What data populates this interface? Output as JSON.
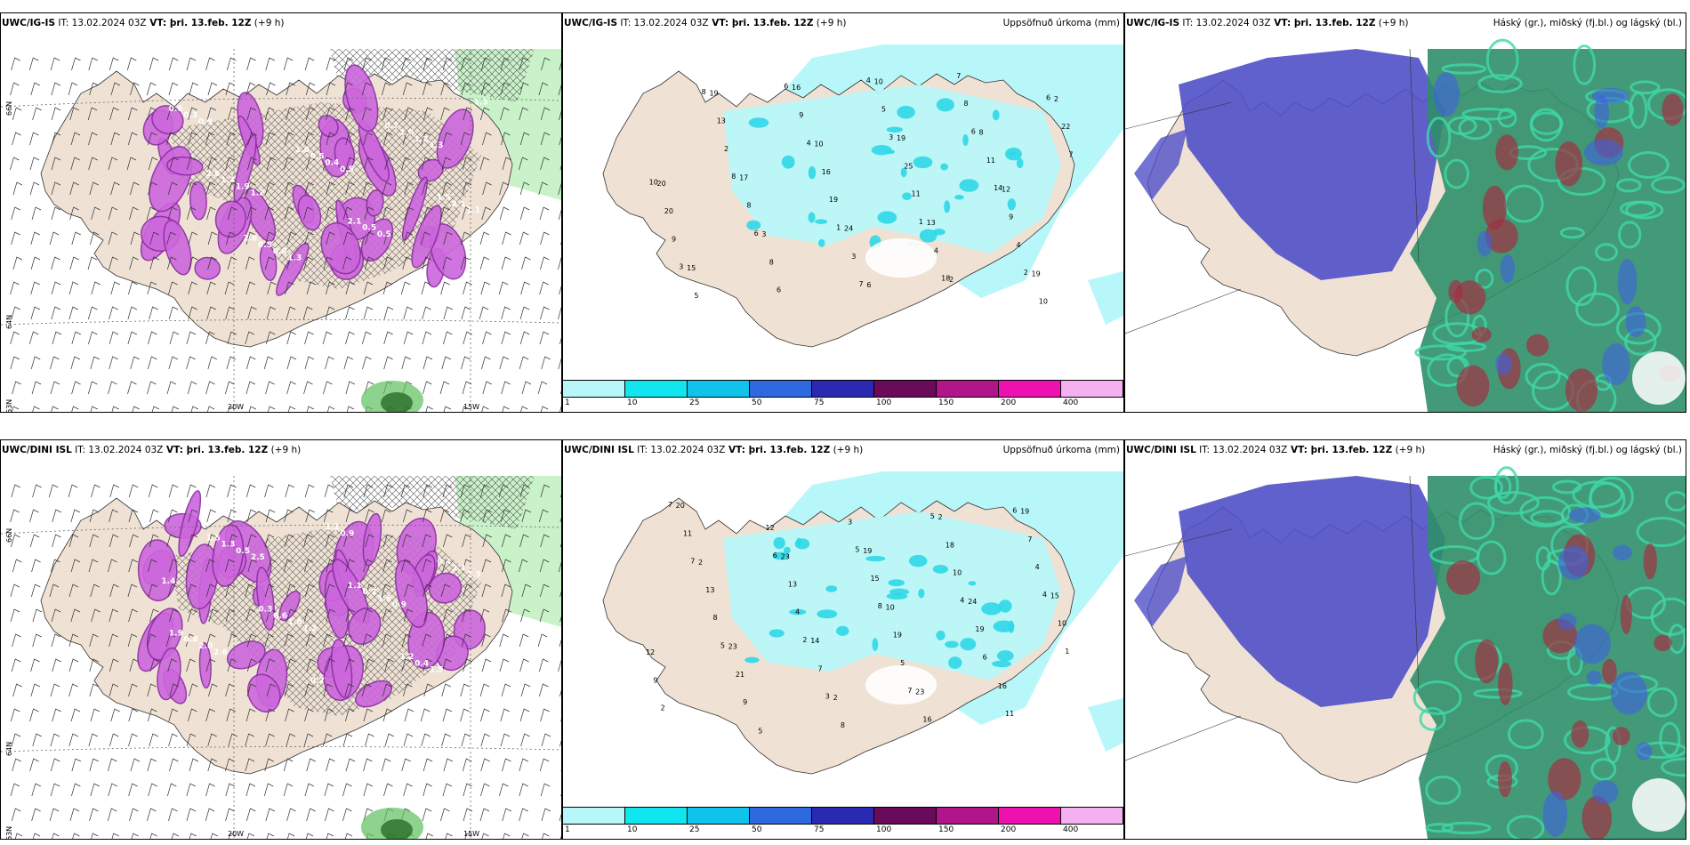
{
  "colors": {
    "land": "#efe2d4",
    "sea": "#ffffff",
    "precip_light": "#b8f7f9",
    "precip_mid": "#7fe7ef",
    "precip_cyan": "#2fd8e8",
    "snow_magenta": "#cc66dd",
    "snow_dark": "#8a2ca0",
    "high_cloud": "#2f8f6a",
    "mid_cloud": "#3fd8a8",
    "low_cloud": "#5050c8",
    "cloud_red": "#a03040",
    "cloud_blue": "#4060e0"
  },
  "colorbar": {
    "segments": [
      {
        "label": "1",
        "color": "#b8f7f9"
      },
      {
        "label": "10",
        "color": "#11e6f0"
      },
      {
        "label": "25",
        "color": "#10c3ea"
      },
      {
        "label": "50",
        "color": "#2d6ae0"
      },
      {
        "label": "75",
        "color": "#2a2ab0"
      },
      {
        "label": "100",
        "color": "#6a0a5a"
      },
      {
        "label": "150",
        "color": "#b0158a"
      },
      {
        "label": "200",
        "color": "#ee11b0"
      },
      {
        "label": "400",
        "color": "#f5b0f0"
      }
    ]
  },
  "panels": [
    {
      "model": "UWC/IG-IS",
      "it_label": "IT:",
      "it_value": "13.02.2024 03Z",
      "vt_label": "VT:",
      "vt_value": "þri. 13.feb. 12Z",
      "lead": "(+9 h)",
      "right_label": "",
      "lat_labels": [
        "66N",
        "64N",
        "63N"
      ],
      "lon_labels": [
        "20W",
        "15W"
      ],
      "snow_values": [
        "1.2",
        "0.5",
        "1.3",
        "0.9",
        "1.3",
        "0.5",
        "1.1",
        "1.9",
        "0.4",
        "1.2",
        "0.3",
        "0.8",
        "0.5",
        "2.1",
        "1.3",
        "0.5",
        "1.0",
        "0.6",
        "0.5",
        "2.1",
        "1.5",
        "2.6",
        "1.0",
        "0.7",
        "1.3",
        "2.8"
      ]
    },
    {
      "model": "UWC/IG-IS",
      "it_label": "IT:",
      "it_value": "13.02.2024 03Z",
      "vt_label": "VT:",
      "vt_value": "þri. 13.feb. 12Z",
      "lead": "(+9 h)",
      "right_label": "Uppsöfnuð úrkoma (mm)",
      "precip_values": [
        "6",
        "2",
        "10",
        "12",
        "3",
        "2",
        "19",
        "19",
        "20",
        "24",
        "19",
        "16",
        "8",
        "17",
        "13",
        "15",
        "10",
        "22",
        "16",
        "9",
        "8",
        "7",
        "13",
        "25",
        "20",
        "3",
        "10",
        "9",
        "11",
        "8",
        "4",
        "5",
        "5",
        "7",
        "19",
        "4",
        "6",
        "8",
        "2",
        "11",
        "9",
        "7",
        "6",
        "4",
        "14",
        "6",
        "18",
        "8",
        "3",
        "10",
        "1",
        "2",
        "6",
        "6",
        "8",
        "1",
        "3",
        "4"
      ]
    },
    {
      "model": "UWC/IG-IS",
      "it_label": "IT:",
      "it_value": "13.02.2024 03Z",
      "vt_label": "VT:",
      "vt_value": "þri. 13.feb. 12Z",
      "lead": "(+9 h)",
      "right_label": "Háský (gr.), miðský (fj.bl.) og lágský (bl.)"
    },
    {
      "model": "UWC/DINI ISL",
      "it_label": "IT:",
      "it_value": "13.02.2024 03Z",
      "vt_label": "VT:",
      "vt_value": "þri. 13.feb. 12Z",
      "lead": "(+9 h)",
      "right_label": "",
      "lat_labels": [
        "66N",
        "64N",
        "63N"
      ],
      "lon_labels": [
        "20W",
        "15W"
      ],
      "snow_values": [
        "2.6",
        "1.2",
        "0.9",
        "1.4",
        "2.5",
        "0.9",
        "1.5",
        "2.0",
        "1.8",
        "1.6",
        "2.3",
        "0.5",
        "1.1",
        "0.4",
        "0.8",
        "0.6",
        "0.2",
        "2.1",
        "1.3",
        "0.7",
        "1.2",
        "1.9",
        "0.3",
        "1.1",
        "0.4",
        "1.5"
      ]
    },
    {
      "model": "UWC/DINI ISL",
      "it_label": "IT:",
      "it_value": "13.02.2024 03Z",
      "vt_label": "VT:",
      "vt_value": "þri. 13.feb. 12Z",
      "lead": "(+9 h)",
      "right_label": "Uppsöfnuð úrkoma (mm)",
      "precip_values": [
        "2",
        "2",
        "10",
        "12",
        "2",
        "19",
        "23",
        "24",
        "23",
        "23",
        "20",
        "19",
        "15",
        "14",
        "16",
        "5",
        "18",
        "13",
        "19",
        "9",
        "8",
        "7",
        "13",
        "19",
        "21",
        "16",
        "11",
        "15",
        "10",
        "7",
        "11",
        "12",
        "10",
        "8",
        "5",
        "2",
        "3",
        "4",
        "4",
        "6",
        "9",
        "5",
        "7",
        "8",
        "1",
        "3",
        "6",
        "6",
        "4",
        "5",
        "7",
        "7",
        "5",
        "4",
        "2"
      ]
    },
    {
      "model": "UWC/DINI ISL",
      "it_label": "IT:",
      "it_value": "13.02.2024 03Z",
      "vt_label": "VT:",
      "vt_value": "þri. 13.feb. 12Z",
      "lead": "(+9 h)",
      "right_label": "Háský (gr.), miðský (fj.bl.) og lágský (bl.)"
    }
  ]
}
